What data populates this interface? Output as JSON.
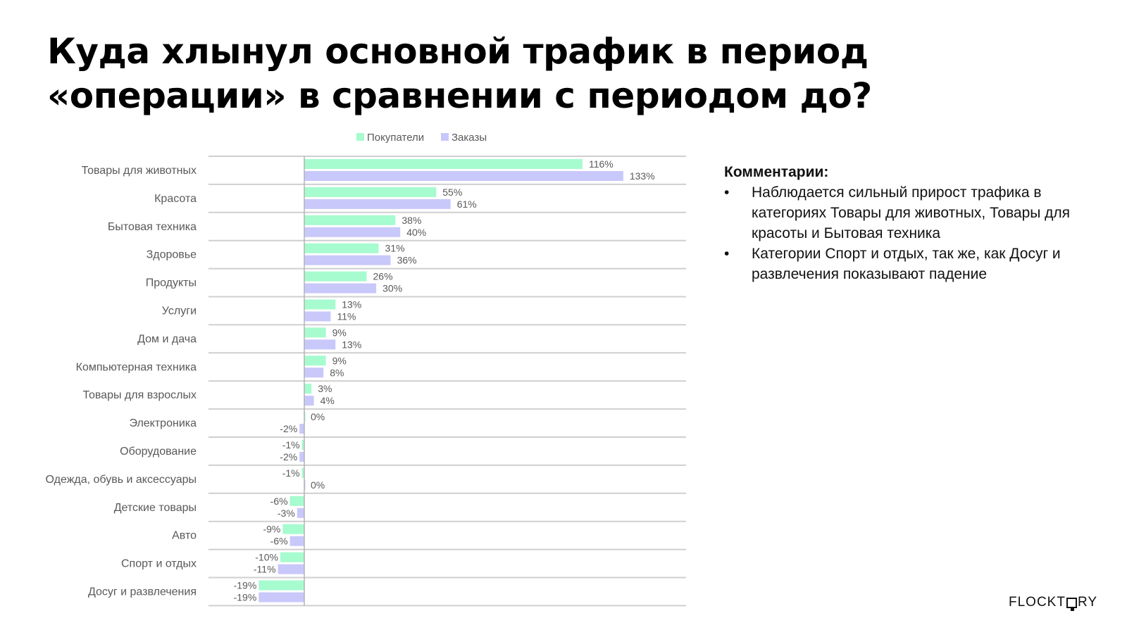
{
  "title_line1": "Куда хлынул основной трафик в период",
  "title_line2": "«операции» в сравнении с периодом до?",
  "colors": {
    "buyers": "#a6fbcf",
    "orders": "#c9c8fb",
    "grid": "#cfcfcf",
    "axis": "#b3b3b3",
    "text": "#595959"
  },
  "chart_data": {
    "type": "bar",
    "orientation": "horizontal",
    "legend_position": "top",
    "categories": [
      "Товары для животных",
      "Красота",
      "Бытовая техника",
      "Здоровье",
      "Продукты",
      "Услуги",
      "Дом и дача",
      "Компьютерная техника",
      "Товары для взрослых",
      "Электроника",
      "Оборудование",
      "Одежда, обувь и аксессуары",
      "Детские товары",
      "Авто",
      "Спорт и отдых",
      "Досуг и развлечения"
    ],
    "series": [
      {
        "name": "Покупатели",
        "values": [
          116,
          55,
          38,
          31,
          26,
          13,
          9,
          9,
          3,
          0,
          -1,
          -1,
          -6,
          -9,
          -10,
          -19
        ]
      },
      {
        "name": "Заказы",
        "values": [
          133,
          61,
          40,
          36,
          30,
          11,
          13,
          8,
          4,
          -2,
          -2,
          0,
          -3,
          -6,
          -11,
          -19
        ]
      }
    ],
    "value_suffix": "%",
    "xlim": [
      -40,
      160
    ]
  },
  "comments": {
    "title": "Комментарии:",
    "items": [
      "Наблюдается сильный прирост трафика в категориях Товары для животных, Товары для красоты и Бытовая техника",
      "Категории Спорт и отдых, так же, как Досуг и развлечения показывают падение"
    ]
  },
  "logo": {
    "left": "FLOCKT",
    "right": "RY"
  }
}
